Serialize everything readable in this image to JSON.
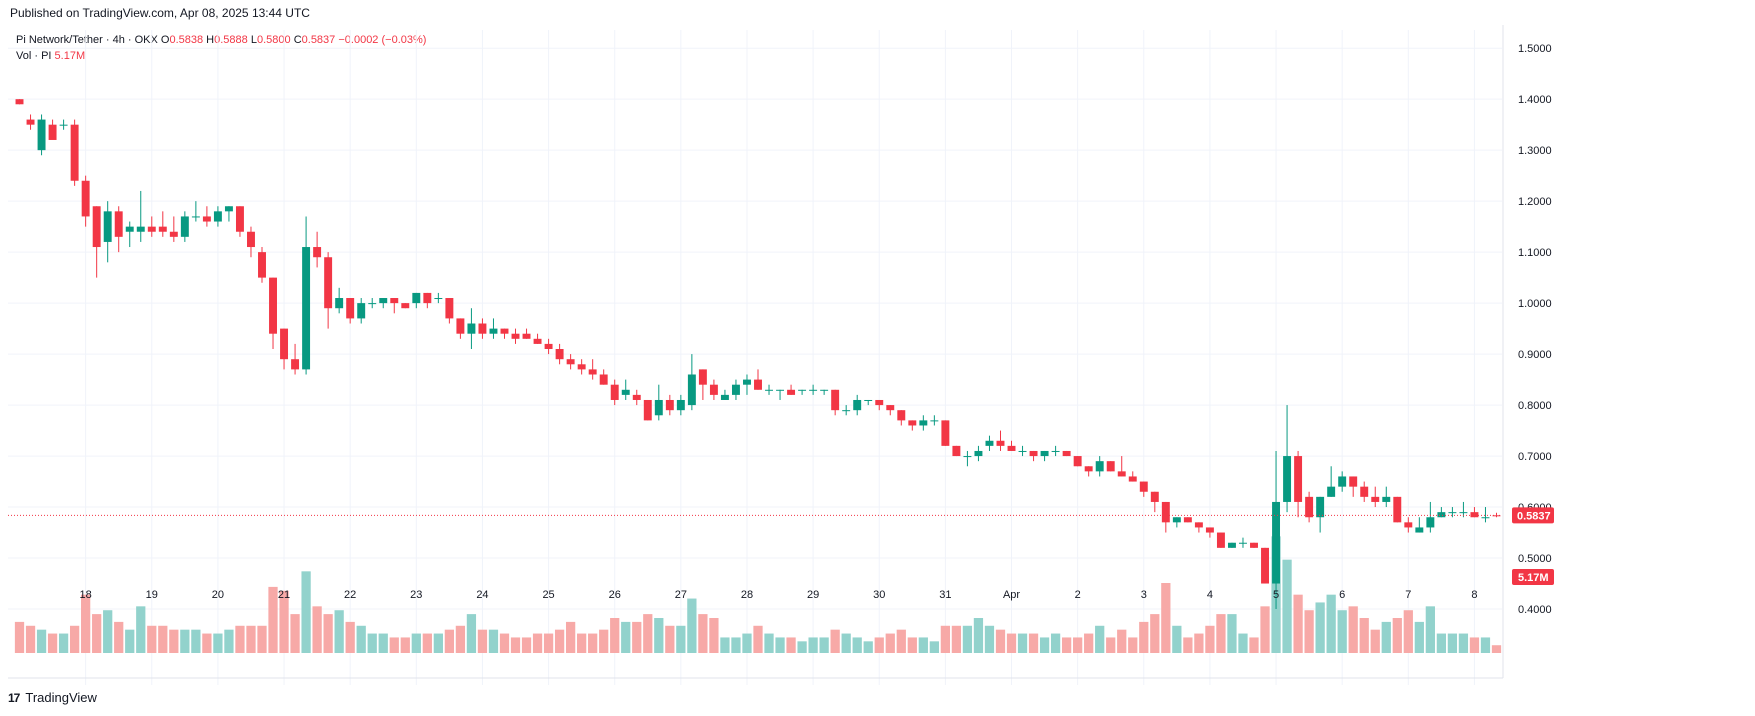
{
  "header": {
    "published": "Published on TradingView.com, Apr 08, 2025 13:44 UTC"
  },
  "legend": {
    "symbol": "Pi Network/Tether · 4h · OKX",
    "o_label": "O",
    "o_value": "0.5838",
    "h_label": "H",
    "h_value": "0.5888",
    "l_label": "L",
    "l_value": "0.5800",
    "c_label": "C",
    "c_value": "0.5837",
    "change": "−0.0002 (−0.03%)",
    "vol_label": "Vol · PI",
    "vol_value": "5.17M"
  },
  "footer": {
    "brand": "TradingView",
    "logo_glyph": "17"
  },
  "colors": {
    "up": "#089981",
    "down": "#f23645",
    "up_vol": "#92d2cc",
    "down_vol": "#f7a9a7",
    "grid": "#f0f3fa",
    "text": "#131722"
  },
  "chart_data": {
    "type": "candlestick",
    "interval": "4h",
    "ylim": [
      0.3,
      1.52
    ],
    "y_ticks": [
      "1.5000",
      "1.4000",
      "1.3000",
      "1.2000",
      "1.1000",
      "1.0000",
      "0.9000",
      "0.8000",
      "0.7000",
      "0.6000",
      "0.5000",
      "0.4000"
    ],
    "x_ticks": [
      {
        "label": "18",
        "bar": 6
      },
      {
        "label": "19",
        "bar": 12
      },
      {
        "label": "20",
        "bar": 18
      },
      {
        "label": "21",
        "bar": 24
      },
      {
        "label": "22",
        "bar": 30
      },
      {
        "label": "23",
        "bar": 36
      },
      {
        "label": "24",
        "bar": 42
      },
      {
        "label": "25",
        "bar": 48
      },
      {
        "label": "26",
        "bar": 54
      },
      {
        "label": "27",
        "bar": 60
      },
      {
        "label": "28",
        "bar": 66
      },
      {
        "label": "29",
        "bar": 72
      },
      {
        "label": "30",
        "bar": 78
      },
      {
        "label": "31",
        "bar": 84
      },
      {
        "label": "Apr",
        "bar": 90
      },
      {
        "label": "2",
        "bar": 96
      },
      {
        "label": "3",
        "bar": 102
      },
      {
        "label": "4",
        "bar": 108
      },
      {
        "label": "5",
        "bar": 114
      },
      {
        "label": "6",
        "bar": 120
      },
      {
        "label": "7",
        "bar": 126
      },
      {
        "label": "8",
        "bar": 132
      }
    ],
    "last_price": "0.5837",
    "last_volume": "5.17M",
    "vol_max": 18,
    "candles": [
      [
        1.4,
        1.4,
        1.39,
        1.39,
        8
      ],
      [
        1.36,
        1.37,
        1.34,
        1.35,
        7
      ],
      [
        1.3,
        1.37,
        1.29,
        1.36,
        6
      ],
      [
        1.35,
        1.36,
        1.33,
        1.32,
        5
      ],
      [
        1.35,
        1.36,
        1.34,
        1.35,
        5
      ],
      [
        1.35,
        1.36,
        1.23,
        1.24,
        7
      ],
      [
        1.24,
        1.25,
        1.15,
        1.17,
        15
      ],
      [
        1.19,
        1.19,
        1.05,
        1.11,
        10
      ],
      [
        1.12,
        1.2,
        1.08,
        1.18,
        11
      ],
      [
        1.18,
        1.19,
        1.1,
        1.13,
        8
      ],
      [
        1.14,
        1.16,
        1.11,
        1.15,
        6
      ],
      [
        1.14,
        1.22,
        1.12,
        1.15,
        12
      ],
      [
        1.15,
        1.17,
        1.13,
        1.14,
        7
      ],
      [
        1.15,
        1.18,
        1.13,
        1.14,
        7
      ],
      [
        1.14,
        1.17,
        1.12,
        1.13,
        6
      ],
      [
        1.13,
        1.18,
        1.12,
        1.17,
        6
      ],
      [
        1.17,
        1.2,
        1.16,
        1.17,
        6
      ],
      [
        1.17,
        1.19,
        1.15,
        1.16,
        5
      ],
      [
        1.16,
        1.19,
        1.15,
        1.18,
        5
      ],
      [
        1.18,
        1.19,
        1.16,
        1.19,
        6
      ],
      [
        1.19,
        1.19,
        1.13,
        1.14,
        7
      ],
      [
        1.14,
        1.15,
        1.09,
        1.11,
        7
      ],
      [
        1.1,
        1.11,
        1.04,
        1.05,
        7
      ],
      [
        1.05,
        1.05,
        0.91,
        0.94,
        17
      ],
      [
        0.95,
        0.95,
        0.87,
        0.89,
        16
      ],
      [
        0.89,
        0.92,
        0.86,
        0.87,
        10
      ],
      [
        0.87,
        1.17,
        0.86,
        1.11,
        21
      ],
      [
        1.11,
        1.14,
        1.07,
        1.09,
        12
      ],
      [
        1.09,
        1.1,
        0.95,
        0.99,
        10
      ],
      [
        0.99,
        1.03,
        0.98,
        1.01,
        11
      ],
      [
        1.01,
        1.01,
        0.96,
        0.97,
        8
      ],
      [
        0.97,
        1.01,
        0.96,
        1.0,
        7
      ],
      [
        1.0,
        1.01,
        0.99,
        1.0,
        5
      ],
      [
        1.0,
        1.01,
        0.99,
        1.01,
        5
      ],
      [
        1.01,
        1.01,
        0.98,
        1.0,
        4
      ],
      [
        1.0,
        1.0,
        0.99,
        0.99,
        4
      ],
      [
        1.0,
        1.02,
        0.99,
        1.02,
        5
      ],
      [
        1.02,
        1.02,
        0.99,
        1.0,
        5
      ],
      [
        1.01,
        1.02,
        1.0,
        1.01,
        5
      ],
      [
        1.01,
        1.01,
        0.96,
        0.97,
        6
      ],
      [
        0.97,
        0.97,
        0.93,
        0.94,
        7
      ],
      [
        0.94,
        0.99,
        0.91,
        0.96,
        10
      ],
      [
        0.96,
        0.97,
        0.93,
        0.94,
        6
      ],
      [
        0.94,
        0.97,
        0.93,
        0.95,
        6
      ],
      [
        0.95,
        0.95,
        0.93,
        0.94,
        5
      ],
      [
        0.94,
        0.95,
        0.92,
        0.93,
        4
      ],
      [
        0.94,
        0.95,
        0.93,
        0.93,
        4
      ],
      [
        0.93,
        0.94,
        0.92,
        0.92,
        5
      ],
      [
        0.92,
        0.93,
        0.9,
        0.91,
        5
      ],
      [
        0.91,
        0.92,
        0.88,
        0.89,
        6
      ],
      [
        0.89,
        0.9,
        0.87,
        0.88,
        8
      ],
      [
        0.88,
        0.89,
        0.86,
        0.87,
        5
      ],
      [
        0.87,
        0.89,
        0.85,
        0.86,
        5
      ],
      [
        0.86,
        0.87,
        0.84,
        0.84,
        6
      ],
      [
        0.84,
        0.85,
        0.8,
        0.81,
        9
      ],
      [
        0.82,
        0.85,
        0.81,
        0.83,
        8
      ],
      [
        0.82,
        0.83,
        0.8,
        0.81,
        8
      ],
      [
        0.81,
        0.81,
        0.77,
        0.77,
        10
      ],
      [
        0.78,
        0.84,
        0.77,
        0.81,
        9
      ],
      [
        0.81,
        0.82,
        0.78,
        0.79,
        7
      ],
      [
        0.79,
        0.82,
        0.78,
        0.81,
        7
      ],
      [
        0.8,
        0.9,
        0.79,
        0.86,
        14
      ],
      [
        0.87,
        0.87,
        0.81,
        0.84,
        10
      ],
      [
        0.84,
        0.85,
        0.81,
        0.82,
        9
      ],
      [
        0.81,
        0.83,
        0.81,
        0.82,
        4
      ],
      [
        0.82,
        0.85,
        0.81,
        0.84,
        4
      ],
      [
        0.84,
        0.86,
        0.82,
        0.85,
        5
      ],
      [
        0.85,
        0.87,
        0.83,
        0.83,
        7
      ],
      [
        0.83,
        0.84,
        0.82,
        0.83,
        5
      ],
      [
        0.83,
        0.83,
        0.81,
        0.83,
        4
      ],
      [
        0.83,
        0.84,
        0.82,
        0.82,
        4
      ],
      [
        0.83,
        0.83,
        0.82,
        0.83,
        3
      ],
      [
        0.83,
        0.84,
        0.82,
        0.83,
        4
      ],
      [
        0.83,
        0.83,
        0.82,
        0.83,
        4
      ],
      [
        0.83,
        0.83,
        0.78,
        0.79,
        6
      ],
      [
        0.79,
        0.8,
        0.78,
        0.79,
        5
      ],
      [
        0.79,
        0.82,
        0.78,
        0.81,
        4
      ],
      [
        0.81,
        0.81,
        0.8,
        0.81,
        3
      ],
      [
        0.81,
        0.81,
        0.79,
        0.8,
        4
      ],
      [
        0.8,
        0.8,
        0.78,
        0.79,
        5
      ],
      [
        0.79,
        0.79,
        0.76,
        0.77,
        6
      ],
      [
        0.77,
        0.77,
        0.75,
        0.76,
        4
      ],
      [
        0.76,
        0.78,
        0.75,
        0.77,
        4
      ],
      [
        0.77,
        0.78,
        0.76,
        0.77,
        3
      ],
      [
        0.77,
        0.77,
        0.72,
        0.72,
        7
      ],
      [
        0.72,
        0.72,
        0.7,
        0.7,
        7
      ],
      [
        0.7,
        0.71,
        0.68,
        0.7,
        7
      ],
      [
        0.7,
        0.72,
        0.69,
        0.71,
        9
      ],
      [
        0.72,
        0.74,
        0.71,
        0.73,
        7
      ],
      [
        0.73,
        0.75,
        0.71,
        0.72,
        6
      ],
      [
        0.72,
        0.73,
        0.71,
        0.71,
        5
      ],
      [
        0.71,
        0.72,
        0.7,
        0.71,
        5
      ],
      [
        0.71,
        0.71,
        0.69,
        0.7,
        5
      ],
      [
        0.7,
        0.71,
        0.69,
        0.71,
        4
      ],
      [
        0.71,
        0.72,
        0.7,
        0.71,
        5
      ],
      [
        0.71,
        0.71,
        0.7,
        0.7,
        4
      ],
      [
        0.7,
        0.7,
        0.68,
        0.68,
        4
      ],
      [
        0.68,
        0.68,
        0.66,
        0.67,
        5
      ],
      [
        0.67,
        0.7,
        0.66,
        0.69,
        7
      ],
      [
        0.69,
        0.69,
        0.67,
        0.67,
        4
      ],
      [
        0.67,
        0.7,
        0.66,
        0.66,
        6
      ],
      [
        0.66,
        0.67,
        0.65,
        0.65,
        4
      ],
      [
        0.65,
        0.65,
        0.62,
        0.63,
        8
      ],
      [
        0.63,
        0.63,
        0.59,
        0.61,
        10
      ],
      [
        0.61,
        0.61,
        0.55,
        0.57,
        18
      ],
      [
        0.57,
        0.58,
        0.56,
        0.58,
        7
      ],
      [
        0.58,
        0.58,
        0.57,
        0.57,
        4
      ],
      [
        0.57,
        0.57,
        0.55,
        0.56,
        5
      ],
      [
        0.56,
        0.56,
        0.54,
        0.55,
        7
      ],
      [
        0.55,
        0.55,
        0.52,
        0.52,
        10
      ],
      [
        0.52,
        0.53,
        0.52,
        0.53,
        10
      ],
      [
        0.53,
        0.54,
        0.52,
        0.53,
        5
      ],
      [
        0.53,
        0.53,
        0.52,
        0.52,
        4
      ],
      [
        0.52,
        0.52,
        0.45,
        0.45,
        12
      ],
      [
        0.45,
        0.71,
        0.4,
        0.61,
        30
      ],
      [
        0.61,
        0.8,
        0.59,
        0.7,
        24
      ],
      [
        0.7,
        0.71,
        0.58,
        0.61,
        15
      ],
      [
        0.62,
        0.63,
        0.57,
        0.58,
        11
      ],
      [
        0.58,
        0.62,
        0.55,
        0.62,
        13
      ],
      [
        0.62,
        0.68,
        0.62,
        0.64,
        15
      ],
      [
        0.64,
        0.67,
        0.63,
        0.66,
        11
      ],
      [
        0.66,
        0.66,
        0.62,
        0.64,
        12
      ],
      [
        0.64,
        0.65,
        0.61,
        0.62,
        9
      ],
      [
        0.62,
        0.64,
        0.6,
        0.61,
        6
      ],
      [
        0.61,
        0.64,
        0.6,
        0.62,
        8
      ],
      [
        0.62,
        0.62,
        0.57,
        0.57,
        9
      ],
      [
        0.57,
        0.58,
        0.55,
        0.56,
        11
      ],
      [
        0.55,
        0.58,
        0.55,
        0.56,
        8
      ],
      [
        0.56,
        0.61,
        0.55,
        0.58,
        12
      ],
      [
        0.58,
        0.6,
        0.58,
        0.59,
        5
      ],
      [
        0.59,
        0.6,
        0.58,
        0.59,
        5
      ],
      [
        0.59,
        0.61,
        0.58,
        0.59,
        5
      ],
      [
        0.59,
        0.6,
        0.58,
        0.58,
        4
      ],
      [
        0.58,
        0.6,
        0.57,
        0.58,
        4
      ],
      [
        0.5838,
        0.5888,
        0.58,
        0.5837,
        2
      ]
    ]
  }
}
